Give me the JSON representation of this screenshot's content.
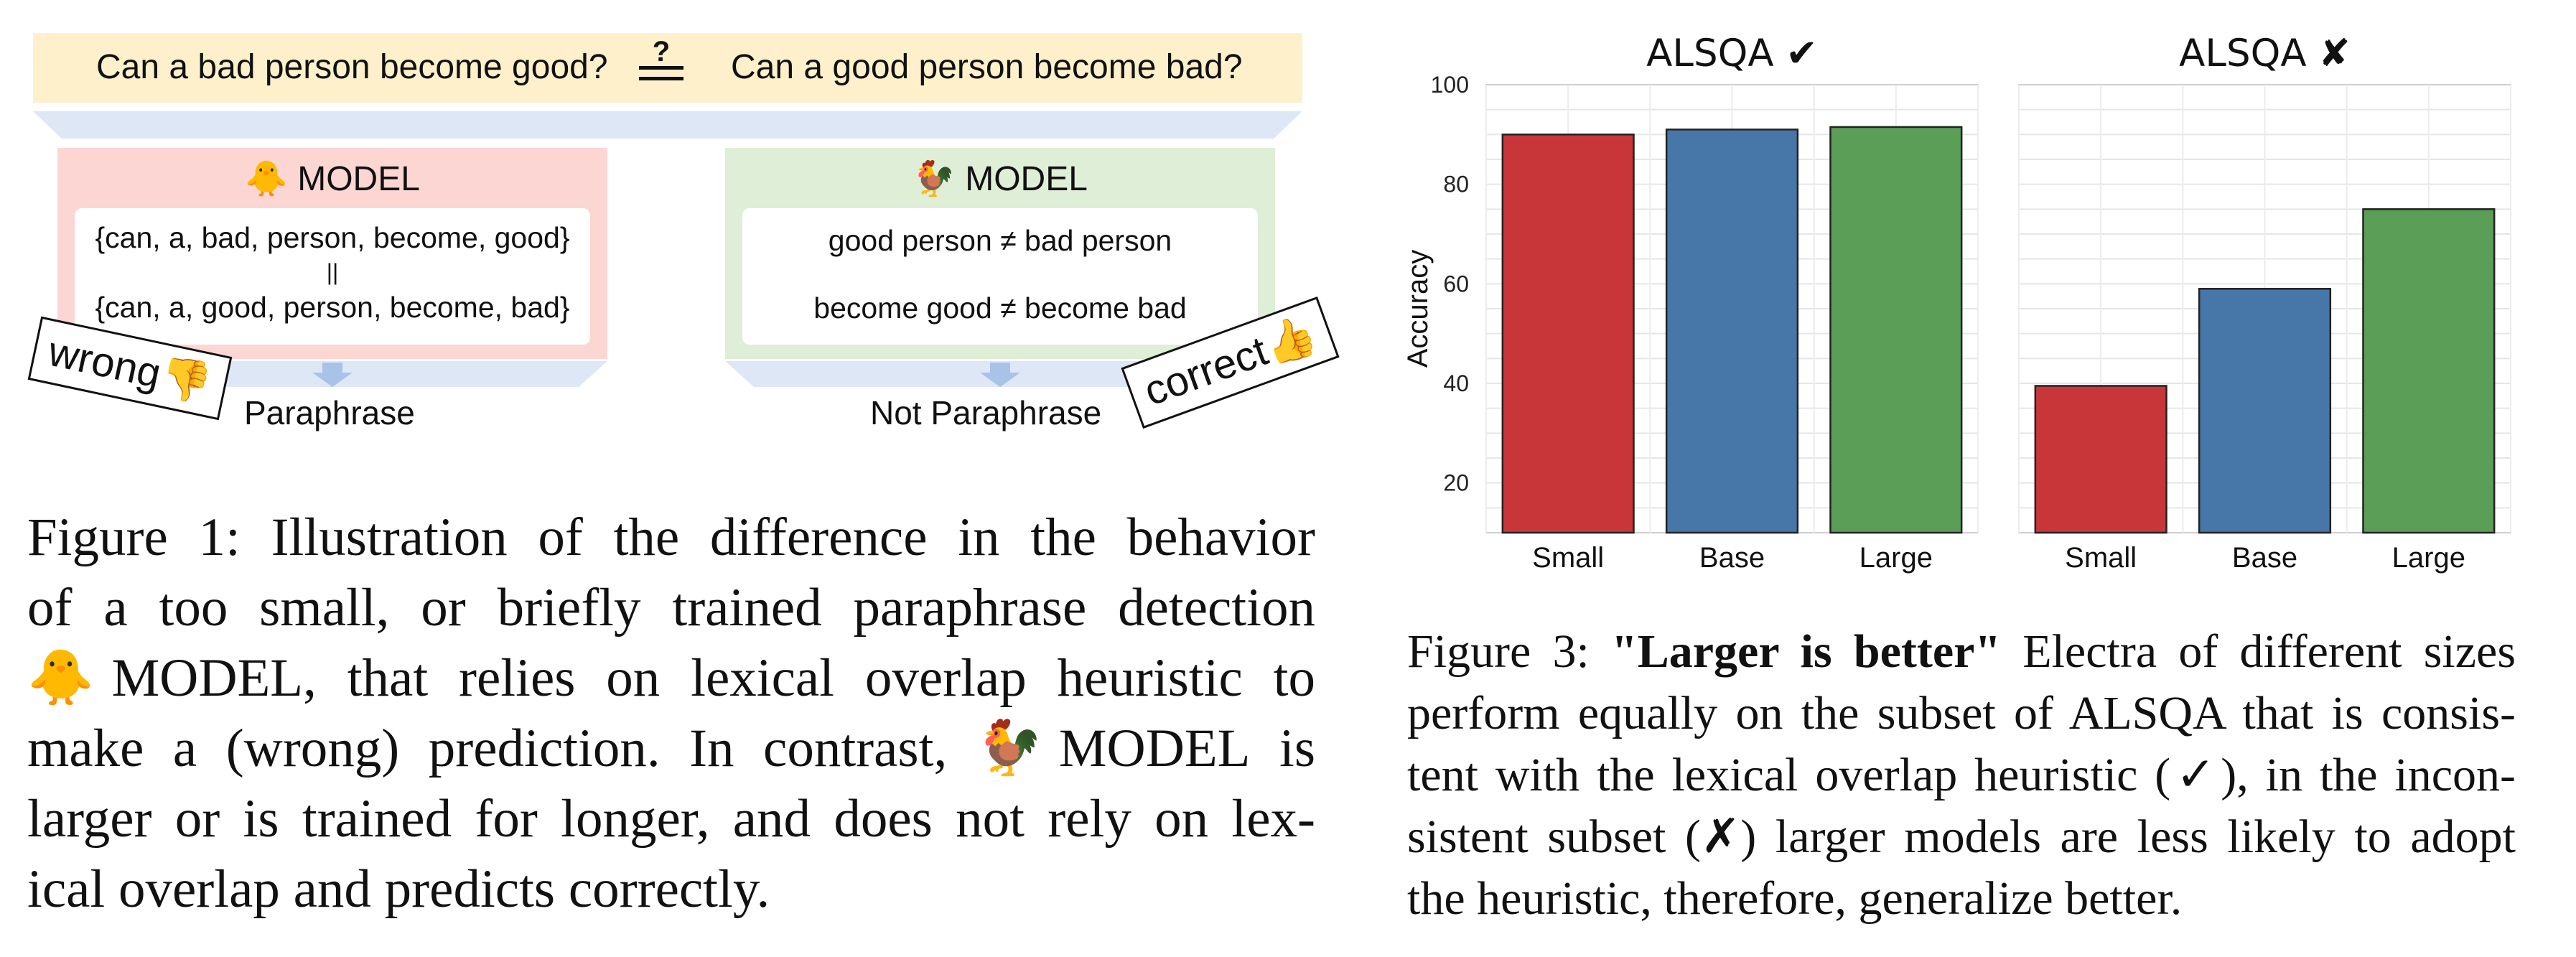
{
  "figure1": {
    "question_left": "Can a bad person become good?",
    "question_right": "Can a good person become bad?",
    "question_sym": "?",
    "left_model": {
      "emoji": "🐥",
      "label": "MODEL",
      "line1": "{can, a, bad, person, become, good}",
      "line2": "||",
      "line3": "{can, a, good, person, become, bad}",
      "prediction": "Paraphrase",
      "stamp": "wrong",
      "stamp_emoji": "👎"
    },
    "right_model": {
      "emoji": "🐓",
      "label": "MODEL",
      "line1": "good person ≠ bad person",
      "line2": "become good ≠ become bad",
      "prediction": "Not Paraphrase",
      "stamp": "correct",
      "stamp_emoji": "👍"
    },
    "caption": {
      "l1": "Figure 1: Illustration of the difference in the behavior",
      "l2": "of a too small, or briefly trained paraphrase detection",
      "l3_chick": "🐥",
      "l3_model": "MODEL",
      "l3_rest": ", that relies on lexical overlap heuristic to",
      "l4_a": "make a (wrong) prediction.  In contrast,",
      "l4_rooster": "🐓",
      "l4_model": "MODEL",
      "l4_b": "is",
      "l5": "larger or is trained for longer, and does not rely on lex-",
      "l6": "ical overlap and predicts correctly."
    }
  },
  "figure3": {
    "caption": {
      "prefix": "Figure 3:",
      "bold": "\"Larger is better\"",
      "l1_rest": "Electra of different sizes",
      "l2": "perform equally on the subset of ALSQA that is consis-",
      "l3": "tent with the lexical overlap heuristic (✓), in the incon-",
      "l4": "sistent subset (✗) larger models are less likely to adopt",
      "l5": "the heuristic, therefore, generalize better."
    }
  },
  "chart_data": {
    "type": "bar",
    "ylabel": "Accuracy",
    "ylim": [
      10,
      100
    ],
    "yticks": [
      "20",
      "40",
      "60",
      "80",
      "100"
    ],
    "grid": true,
    "categories": [
      "Small",
      "Base",
      "Large"
    ],
    "colors": {
      "Small": "#c8363a",
      "Base": "#4677a8",
      "Large": "#5a9e57"
    },
    "panels": [
      {
        "title": "ALSQA ✔",
        "values": [
          90,
          91,
          91.5
        ]
      },
      {
        "title": "ALSQA ✘",
        "values": [
          39.5,
          59,
          75
        ]
      }
    ]
  }
}
